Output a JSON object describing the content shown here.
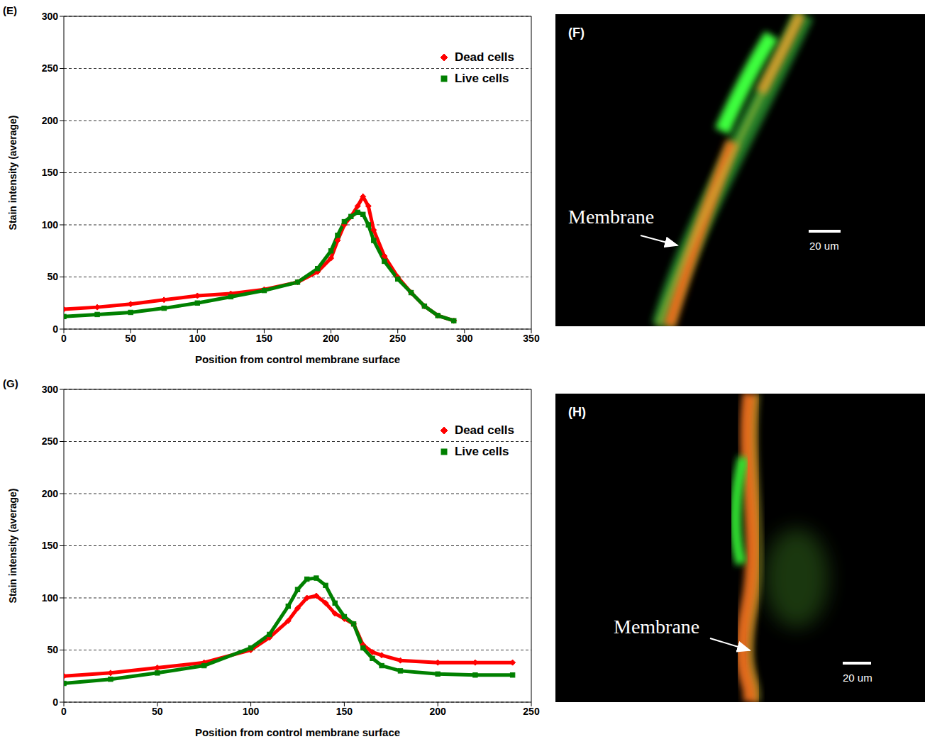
{
  "chart_data": [
    {
      "type": "line",
      "panel": "(E)",
      "x_label": "Position from control membrane surface",
      "y_label": "Stain intensity (average)",
      "xlim": [
        0,
        350
      ],
      "xticks": [
        0,
        50,
        100,
        150,
        200,
        250,
        300,
        350
      ],
      "ylim": [
        0,
        300
      ],
      "yticks": [
        0,
        50,
        100,
        150,
        200,
        250,
        300
      ],
      "grid": true,
      "legend": "upper right",
      "x": [
        0,
        25,
        50,
        75,
        100,
        125,
        150,
        175,
        190,
        200,
        205,
        210,
        215,
        220,
        224,
        228,
        232,
        240,
        250,
        260,
        270,
        280,
        292
      ],
      "series": [
        {
          "name": "Dead cells",
          "color": "#ff0000",
          "marker": "diamond",
          "values": [
            19,
            21,
            24,
            28,
            32,
            34,
            38,
            45,
            55,
            68,
            85,
            100,
            108,
            118,
            127,
            118,
            95,
            70,
            50,
            35,
            22,
            13,
            8
          ]
        },
        {
          "name": "Live cells",
          "color": "#008000",
          "marker": "square",
          "values": [
            12,
            14,
            16,
            20,
            25,
            31,
            37,
            45,
            58,
            75,
            90,
            103,
            108,
            112,
            110,
            100,
            85,
            65,
            48,
            35,
            22,
            13,
            8
          ]
        }
      ]
    },
    {
      "type": "line",
      "panel": "(G)",
      "x_label": "Position from control membrane surface",
      "y_label": "Stain intensity (average)",
      "xlim": [
        0,
        250
      ],
      "xticks": [
        0,
        50,
        100,
        150,
        200,
        250
      ],
      "ylim": [
        0,
        300
      ],
      "yticks": [
        0,
        50,
        100,
        150,
        200,
        250,
        300
      ],
      "grid": true,
      "legend": "upper right",
      "x": [
        0,
        25,
        50,
        75,
        100,
        110,
        120,
        125,
        130,
        135,
        140,
        145,
        150,
        155,
        160,
        165,
        170,
        180,
        200,
        220,
        240
      ],
      "series": [
        {
          "name": "Dead cells",
          "color": "#ff0000",
          "marker": "diamond",
          "values": [
            25,
            28,
            33,
            38,
            50,
            62,
            78,
            90,
            100,
            102,
            95,
            85,
            80,
            75,
            55,
            48,
            45,
            40,
            38,
            38,
            38
          ]
        },
        {
          "name": "Live cells",
          "color": "#008000",
          "marker": "square",
          "values": [
            18,
            22,
            28,
            35,
            52,
            65,
            92,
            108,
            118,
            119,
            112,
            95,
            82,
            75,
            52,
            42,
            35,
            30,
            27,
            26,
            26
          ]
        }
      ]
    }
  ],
  "images": [
    {
      "panel": "(F)",
      "annotation": "Membrane",
      "scale_bar": "20 um"
    },
    {
      "panel": "(H)",
      "annotation": "Membrane",
      "scale_bar": "20 um"
    }
  ]
}
